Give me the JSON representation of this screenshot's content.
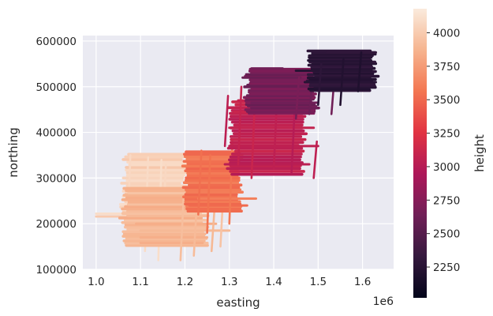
{
  "chart_data": {
    "type": "scatter",
    "title": "",
    "xlabel": "easting",
    "ylabel": "northing",
    "x_offset_label": "1e6",
    "xlim": [
      0.97,
      1.67
    ],
    "ylim": [
      100000,
      612000
    ],
    "x_ticks": [
      "1.0",
      "1.1",
      "1.2",
      "1.3",
      "1.4",
      "1.5",
      "1.6"
    ],
    "x_tick_values": [
      1.0,
      1.1,
      1.2,
      1.3,
      1.4,
      1.5,
      1.6
    ],
    "y_ticks": [
      "100000",
      "200000",
      "300000",
      "400000",
      "500000",
      "600000"
    ],
    "y_tick_values": [
      100000,
      200000,
      300000,
      400000,
      500000,
      600000
    ],
    "grid": true,
    "background": "#eaeaf2",
    "colorbar": {
      "label": "height",
      "range": [
        2020,
        4180
      ],
      "ticks": [
        "2250",
        "2500",
        "2750",
        "3000",
        "3250",
        "3500",
        "3750",
        "4000"
      ],
      "tick_values": [
        2250,
        2500,
        2750,
        3000,
        3250,
        3500,
        3750,
        4000
      ],
      "colormap": "rocket",
      "colors": [
        "#03051a",
        "#35193e",
        "#701f57",
        "#ad1759",
        "#e13342",
        "#f37651",
        "#f6b48f",
        "#faebdd"
      ]
    },
    "survey_blocks": [
      {
        "name_hint": "block-1",
        "height": 4050,
        "x": [
          1.06,
          1.2
        ],
        "y": [
          205000,
          355000
        ],
        "lines_e": [
          [
            1.0,
            1.25,
            222000
          ],
          [
            1.0,
            1.22,
            216000
          ],
          [
            1.08,
            1.28,
            262000
          ],
          [
            1.07,
            1.26,
            248000
          ],
          [
            1.07,
            1.24,
            235000
          ]
        ],
        "lines_n": [
          [
            1.07,
            160000,
            350000
          ],
          [
            1.11,
            140000,
            345000
          ],
          [
            1.14,
            120000,
            340000
          ],
          [
            1.15,
            165000,
            330000
          ]
        ]
      },
      {
        "name_hint": "block-2",
        "height": 3900,
        "x": [
          1.06,
          1.25
        ],
        "y": [
          150000,
          280000
        ],
        "lines_e": [
          [
            1.09,
            1.27,
            200000
          ],
          [
            1.1,
            1.3,
            185000
          ],
          [
            1.1,
            1.25,
            170000
          ],
          [
            1.1,
            1.24,
            158000
          ]
        ],
        "lines_n": [
          [
            1.19,
            120000,
            260000
          ],
          [
            1.22,
            130000,
            250000
          ],
          [
            1.26,
            140000,
            240000
          ],
          [
            1.28,
            150000,
            280000
          ]
        ]
      },
      {
        "name_hint": "block-3",
        "height": 3550,
        "x": [
          1.2,
          1.33
        ],
        "y": [
          225000,
          360000
        ],
        "lines_e": [
          [
            1.21,
            1.34,
            240000
          ],
          [
            1.23,
            1.36,
            255000
          ]
        ],
        "lines_n": [
          [
            1.23,
            220000,
            360000
          ],
          [
            1.25,
            180000,
            350000
          ],
          [
            1.3,
            200000,
            380000
          ]
        ]
      },
      {
        "name_hint": "block-4",
        "height": 3050,
        "x": [
          1.3,
          1.47
        ],
        "y": [
          305000,
          470000
        ],
        "lines_e": [
          [
            1.29,
            1.48,
            330000
          ],
          [
            1.3,
            1.5,
            370000
          ],
          [
            1.3,
            1.49,
            410000
          ],
          [
            1.31,
            1.47,
            445000
          ],
          [
            1.32,
            1.46,
            470000
          ]
        ],
        "lines_n": [
          [
            1.29,
            370000,
            480000
          ],
          [
            1.32,
            330000,
            500000
          ],
          [
            1.35,
            300000,
            460000
          ],
          [
            1.4,
            320000,
            470000
          ],
          [
            1.44,
            310000,
            450000
          ],
          [
            1.49,
            300000,
            380000
          ]
        ]
      },
      {
        "name_hint": "block-5",
        "height": 2650,
        "x": [
          1.34,
          1.5
        ],
        "y": [
          440000,
          540000
        ],
        "lines_e": [
          [
            1.35,
            1.5,
            465000
          ],
          [
            1.35,
            1.51,
            495000
          ],
          [
            1.33,
            1.46,
            520000
          ],
          [
            1.35,
            1.42,
            540000
          ]
        ],
        "lines_n": [
          [
            1.45,
            430000,
            520000
          ],
          [
            1.48,
            440000,
            510000
          ],
          [
            1.53,
            440000,
            525000
          ]
        ]
      },
      {
        "name_hint": "block-6",
        "height": 2250,
        "x": [
          1.48,
          1.63
        ],
        "y": [
          490000,
          580000
        ],
        "lines_e": [
          [
            1.47,
            1.63,
            510000
          ],
          [
            1.45,
            1.62,
            535000
          ],
          [
            1.49,
            1.62,
            555000
          ],
          [
            1.52,
            1.63,
            575000
          ]
        ],
        "lines_n": [
          [
            1.5,
            460000,
            550000
          ],
          [
            1.55,
            460000,
            560000
          ],
          [
            1.59,
            490000,
            575000
          ]
        ]
      }
    ]
  }
}
